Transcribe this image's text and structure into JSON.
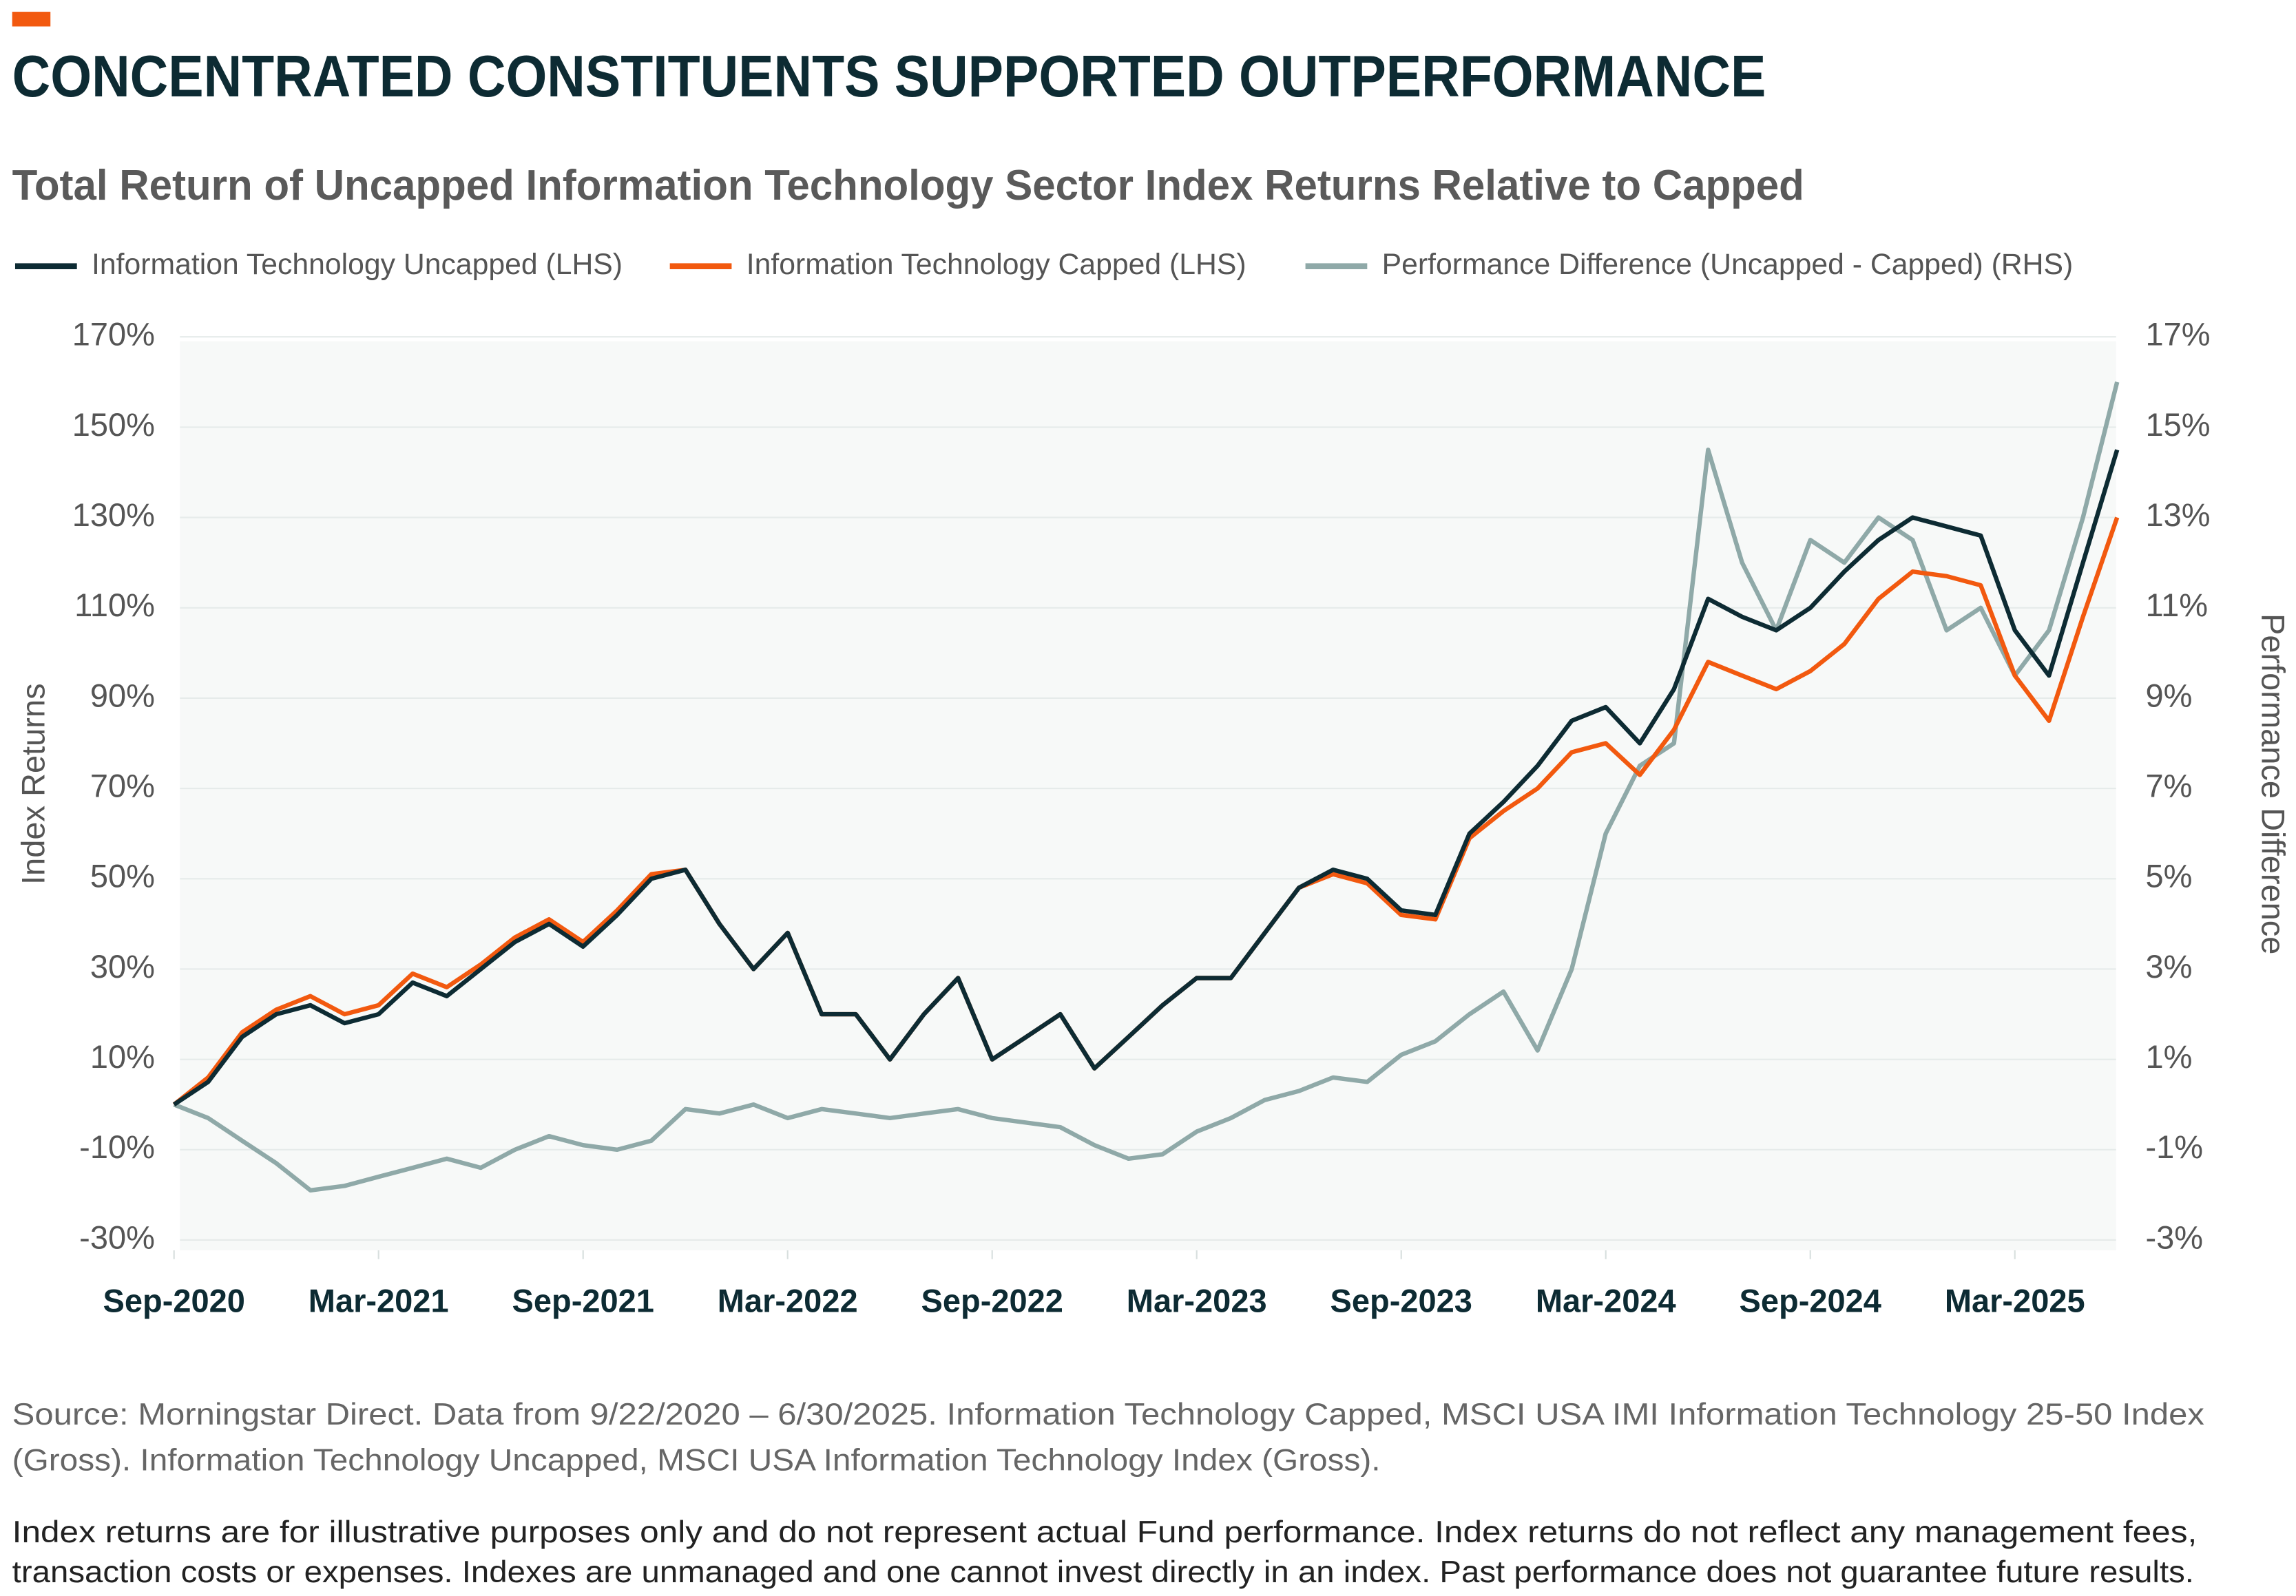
{
  "chart_data": {
    "type": "line",
    "title": "CONCENTRATED CONSTITUENTS SUPPORTED OUTPERFORMANCE",
    "subtitle": "Total Return of Uncapped Information Technology Sector Index Returns Relative to Capped",
    "y_label": "Index Returns",
    "y2_label": "Performance Difference",
    "x": [
      "Sep-2020",
      "Oct-2020",
      "Nov-2020",
      "Dec-2020",
      "Jan-2021",
      "Feb-2021",
      "Mar-2021",
      "Apr-2021",
      "May-2021",
      "Jun-2021",
      "Jul-2021",
      "Aug-2021",
      "Sep-2021",
      "Oct-2021",
      "Nov-2021",
      "Dec-2021",
      "Jan-2022",
      "Feb-2022",
      "Mar-2022",
      "Apr-2022",
      "May-2022",
      "Jun-2022",
      "Jul-2022",
      "Aug-2022",
      "Sep-2022",
      "Oct-2022",
      "Nov-2022",
      "Dec-2022",
      "Jan-2023",
      "Feb-2023",
      "Mar-2023",
      "Apr-2023",
      "May-2023",
      "Jun-2023",
      "Jul-2023",
      "Aug-2023",
      "Sep-2023",
      "Oct-2023",
      "Nov-2023",
      "Dec-2023",
      "Jan-2024",
      "Feb-2024",
      "Mar-2024",
      "Apr-2024",
      "May-2024",
      "Jun-2024",
      "Jul-2024",
      "Aug-2024",
      "Sep-2024",
      "Oct-2024",
      "Nov-2024",
      "Dec-2024",
      "Jan-2025",
      "Feb-2025",
      "Mar-2025",
      "Apr-2025",
      "May-2025",
      "Jun-2025"
    ],
    "series": [
      {
        "name": "Information Technology Uncapped (LHS)",
        "color": "#0d2b33",
        "values": [
          0,
          5,
          15,
          20,
          22,
          18,
          20,
          27,
          24,
          30,
          36,
          40,
          35,
          42,
          50,
          52,
          40,
          30,
          38,
          20,
          20,
          10,
          20,
          28,
          10,
          15,
          20,
          8,
          15,
          22,
          28,
          28,
          38,
          48,
          52,
          50,
          43,
          42,
          60,
          67,
          75,
          85,
          88,
          80,
          92,
          112,
          108,
          105,
          110,
          118,
          125,
          130,
          128,
          126,
          105,
          95,
          120,
          145
        ]
      },
      {
        "name": "Information Technology Capped (LHS)",
        "color": "#f2590f",
        "values": [
          0,
          6,
          16,
          21,
          24,
          20,
          22,
          29,
          26,
          31,
          37,
          41,
          36,
          43,
          51,
          52,
          40,
          30,
          38,
          20,
          20,
          10,
          20,
          28,
          10,
          15,
          20,
          8,
          15,
          22,
          28,
          28,
          38,
          48,
          51,
          49,
          42,
          41,
          59,
          65,
          70,
          78,
          80,
          73,
          83,
          98,
          95,
          92,
          96,
          102,
          112,
          118,
          117,
          115,
          95,
          85,
          108,
          130
        ]
      },
      {
        "name": "Performance Difference (Uncapped - Capped) (RHS)",
        "color": "#8fa9a8",
        "axis": "y2",
        "values": [
          0,
          -0.3,
          -0.8,
          -1.3,
          -1.9,
          -1.8,
          -1.6,
          -1.4,
          -1.2,
          -1.4,
          -1.0,
          -0.7,
          -0.9,
          -1.0,
          -0.8,
          -0.1,
          -0.2,
          0,
          -0.3,
          -0.1,
          -0.2,
          -0.3,
          -0.2,
          -0.1,
          -0.3,
          -0.4,
          -0.5,
          -0.9,
          -1.2,
          -1.1,
          -0.6,
          -0.3,
          0.1,
          0.3,
          0.6,
          0.5,
          1.1,
          1.4,
          2.0,
          2.5,
          1.2,
          3.0,
          6.0,
          7.5,
          8.0,
          14.5,
          12.0,
          10.5,
          12.5,
          12.0,
          13.0,
          12.5,
          10.5,
          11.0,
          9.5,
          10.5,
          13.0,
          16.0
        ]
      }
    ],
    "xticks": [
      "Sep-2020",
      "Mar-2021",
      "Sep-2021",
      "Mar-2022",
      "Sep-2022",
      "Mar-2023",
      "Sep-2023",
      "Mar-2024",
      "Sep-2024",
      "Mar-2025"
    ],
    "ylim": [
      -30,
      170
    ],
    "yticks": [
      {
        "value": -30,
        "label": "-30%"
      },
      {
        "value": -10,
        "label": "-10%"
      },
      {
        "value": 10,
        "label": "10%"
      },
      {
        "value": 30,
        "label": "30%"
      },
      {
        "value": 50,
        "label": "50%"
      },
      {
        "value": 70,
        "label": "70%"
      },
      {
        "value": 90,
        "label": "90%"
      },
      {
        "value": 110,
        "label": "110%"
      },
      {
        "value": 130,
        "label": "130%"
      },
      {
        "value": 150,
        "label": "150%"
      },
      {
        "value": 170,
        "label": "170%"
      }
    ],
    "y2lim": [
      -3,
      17
    ],
    "y2ticks": [
      {
        "value": -3,
        "label": "-3%"
      },
      {
        "value": -1,
        "label": "-1%"
      },
      {
        "value": 1,
        "label": "1%"
      },
      {
        "value": 3,
        "label": "3%"
      },
      {
        "value": 5,
        "label": "5%"
      },
      {
        "value": 7,
        "label": "7%"
      },
      {
        "value": 9,
        "label": "9%"
      },
      {
        "value": 11,
        "label": "11%"
      },
      {
        "value": 13,
        "label": "13%"
      },
      {
        "value": 15,
        "label": "15%"
      },
      {
        "value": 17,
        "label": "17%"
      }
    ],
    "grid": true,
    "legend": "top",
    "source": [
      "Source: Morningstar Direct. Data from 9/22/2020 – 6/30/2025. Information Technology Capped, MSCI USA IMI Information Technology 25-50 Index",
      "(Gross). Information Technology Uncapped, MSCI USA Information Technology Index (Gross)."
    ],
    "disclaimer": [
      "Index returns are for illustrative purposes only and do not represent actual Fund performance. Index returns do not reflect any management fees,",
      "transaction costs or expenses. Indexes are unmanaged and one cannot invest directly in an index. Past performance does not guarantee future results."
    ]
  }
}
